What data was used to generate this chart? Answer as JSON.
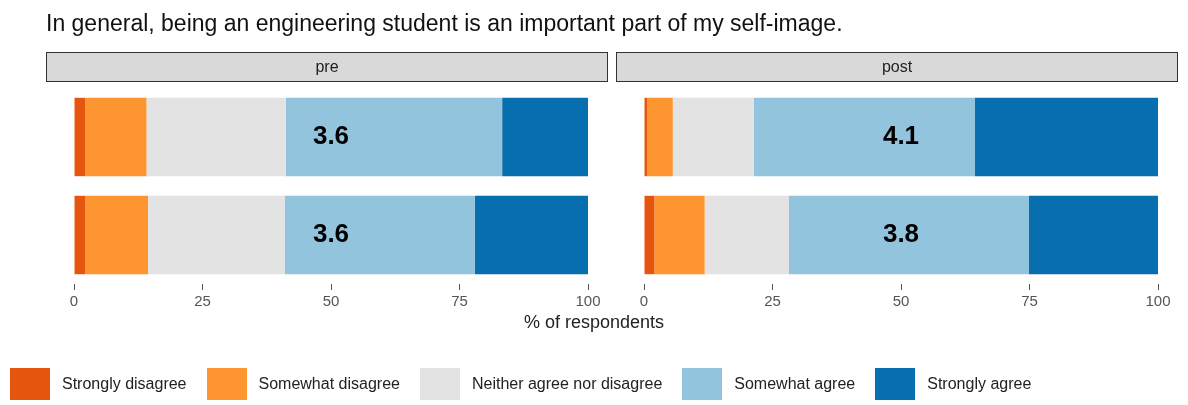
{
  "chart_data": [
    {
      "type": "bar",
      "title": "In general, being an engineering student is an important part of my self-image.",
      "subtitle": "pre",
      "xlabel": "% of respondents",
      "orientation": "horizontal",
      "stacked": true,
      "categories": [
        null,
        null
      ],
      "xlim": [
        0,
        100
      ],
      "xticks": [
        0,
        25,
        50,
        75,
        100
      ],
      "tick_labels": "x",
      "grid": false,
      "legend": "bottom",
      "series": [
        {
          "name": "Strongly disagree",
          "color": "#e6550d",
          "values": [
            2.2,
            2.2
          ]
        },
        {
          "name": "Somewhat disagree",
          "color": "#fd9530",
          "values": [
            11.9,
            12.2
          ]
        },
        {
          "name": "Neither agree nor disagree",
          "color": "#e3e3e3",
          "values": [
            27.1,
            26.6
          ]
        },
        {
          "name": "Somewhat agree",
          "color": "#93c4de",
          "values": [
            42.1,
            37
          ]
        },
        {
          "name": "Strongly agree",
          "color": "#076eb0",
          "values": [
            16.7,
            22
          ]
        }
      ],
      "annotations": [
        "3.6",
        "3.6"
      ]
    },
    {
      "type": "bar",
      "subtitle": "post",
      "orientation": "horizontal",
      "stacked": true,
      "categories": [
        null,
        null
      ],
      "xlim": [
        0,
        100
      ],
      "xticks": [
        0,
        25,
        50,
        75,
        100
      ],
      "tick_labels": "x",
      "grid": false,
      "series": [
        {
          "color": "#e6550d",
          "values": [
            0.6,
            2
          ]
        },
        {
          "color": "#fd9530",
          "values": [
            5,
            9.8
          ]
        },
        {
          "color": "#e3e3e3",
          "values": [
            15.8,
            16.4
          ]
        },
        {
          "color": "#93c4de",
          "values": [
            43,
            46.7
          ]
        },
        {
          "color": "#076eb0",
          "values": [
            35.6,
            25.1
          ]
        }
      ],
      "annotations": [
        "4.1",
        "3.8"
      ]
    }
  ]
}
